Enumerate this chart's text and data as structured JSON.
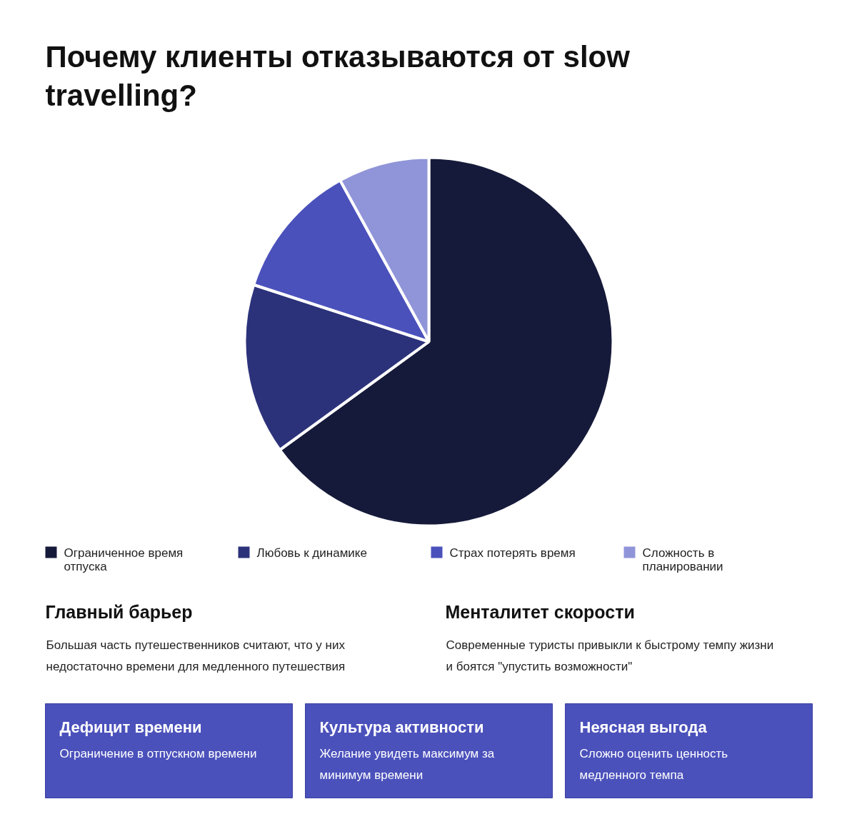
{
  "chart_data": [
    {
      "type": "pie",
      "title": "Почему клиенты отказываются от slow travelling?",
      "categories": [
        "Ограниченное время отпуска",
        "Любовь к динамике",
        "Страх потерять время",
        "Сложность в планировании"
      ],
      "values": [
        65,
        15,
        12,
        8
      ],
      "colors": [
        "#161a3a",
        "#2c327a",
        "#4b51bb",
        "#9094d8"
      ],
      "legend": "bottom"
    },
    {
      "type": "other",
      "annotations": [
        "Главный барьер",
        "Большая часть путешественников считают, что у них недостаточно времени для медленного путешествия",
        "Менталитет скорости",
        "Современные туристы привыкли к быстрому темпу жизни и боятся \"упустить возможности\"",
        "Дефицит времени",
        "Ограничение в отпускном времени",
        "Культура активности",
        "Желание увидеть максимум за минимум времени",
        "Неясная выгода",
        "Сложно оценить ценность медленного темпа"
      ]
    }
  ]
}
